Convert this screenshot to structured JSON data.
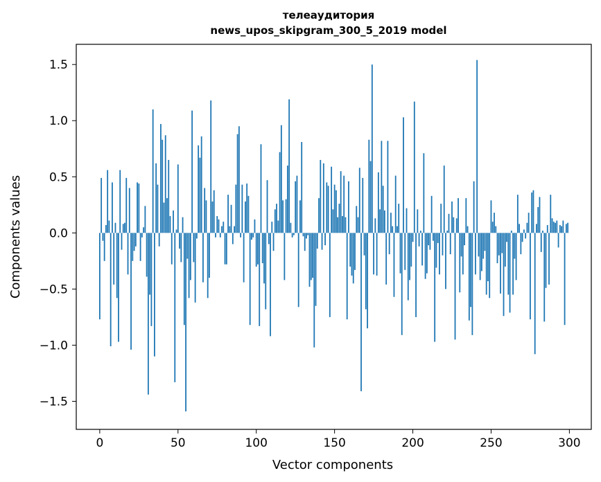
{
  "chart_data": {
    "type": "bar",
    "title_line1": "телеаудитория",
    "title_line2": "news_upos_skipgram_300_5_2019 model",
    "xlabel": "Vector components",
    "ylabel": "Components values",
    "xlim": [
      -15,
      314
    ],
    "ylim": [
      -1.75,
      1.68
    ],
    "xticks": [
      0,
      50,
      100,
      150,
      200,
      250,
      300
    ],
    "yticks": [
      -1.5,
      -1.0,
      -0.5,
      0.0,
      0.5,
      1.0,
      1.5
    ],
    "ytick_labels": [
      "−1.5",
      "−1.0",
      "−0.5",
      "0.0",
      "0.5",
      "1.0",
      "1.5"
    ],
    "bar_color": "#1f77b4",
    "grid": false,
    "values": [
      -0.77,
      0.49,
      -0.07,
      -0.25,
      0.07,
      0.56,
      0.11,
      -1.01,
      0.45,
      -0.46,
      0.09,
      -0.58,
      -0.97,
      0.56,
      -0.15,
      0.08,
      0.09,
      0.49,
      -0.37,
      0.4,
      -1.04,
      -0.25,
      -0.16,
      -0.12,
      0.45,
      0.44,
      -0.25,
      -0.04,
      0.05,
      0.24,
      -0.39,
      -1.44,
      -0.55,
      -0.83,
      1.1,
      -1.1,
      0.62,
      0.43,
      -0.12,
      0.97,
      0.83,
      0.27,
      0.87,
      0.31,
      0.65,
      0.15,
      -0.28,
      0.2,
      -1.33,
      0.03,
      0.61,
      -0.14,
      -0.26,
      0.14,
      -0.82,
      -1.59,
      -0.23,
      -0.58,
      -0.42,
      1.09,
      -0.26,
      -0.62,
      -0.05,
      0.78,
      0.67,
      0.86,
      -0.44,
      0.4,
      0.29,
      -0.58,
      -0.4,
      1.18,
      0.28,
      0.38,
      -0.04,
      0.15,
      0.12,
      -0.04,
      0.06,
      0.1,
      -0.28,
      -0.28,
      0.34,
      0.06,
      0.25,
      -0.1,
      0.06,
      0.43,
      0.88,
      0.95,
      -0.04,
      0.43,
      -0.44,
      0.28,
      0.44,
      0.33,
      -0.82,
      -0.06,
      -0.04,
      0.12,
      -0.3,
      -0.28,
      -0.83,
      0.79,
      -0.27,
      -0.45,
      -0.68,
      0.47,
      -0.1,
      -0.92,
      0.1,
      -0.16,
      0.21,
      0.26,
      0.11,
      0.72,
      0.96,
      0.29,
      -0.42,
      0.3,
      0.6,
      1.19,
      0.09,
      -0.04,
      -0.02,
      0.46,
      0.51,
      -0.66,
      0.29,
      0.81,
      -0.03,
      -0.16,
      -0.05,
      -0.02,
      -0.48,
      -0.42,
      -0.4,
      -1.02,
      -0.65,
      -0.14,
      0.31,
      0.65,
      -0.15,
      0.62,
      -0.11,
      0.45,
      0.42,
      -0.75,
      0.59,
      0.21,
      0.43,
      0.38,
      0.14,
      0.26,
      0.55,
      0.15,
      0.51,
      0.14,
      -0.77,
      0.46,
      -0.3,
      -0.38,
      -0.45,
      -0.33,
      0.24,
      0.14,
      0.58,
      -1.41,
      0.49,
      -0.2,
      -0.68,
      -0.85,
      0.83,
      0.64,
      1.5,
      -0.37,
      0.13,
      -0.38,
      0.54,
      0.21,
      0.82,
      0.42,
      0.2,
      -0.46,
      0.82,
      -0.19,
      0.18,
      0.06,
      -0.57,
      0.51,
      0.06,
      0.26,
      -0.36,
      -0.91,
      1.03,
      -0.33,
      0.22,
      -0.6,
      -0.42,
      -0.3,
      -0.08,
      1.17,
      -0.75,
      0.21,
      -0.12,
      0.02,
      -0.29,
      0.71,
      -0.41,
      -0.36,
      -0.11,
      -0.15,
      0.33,
      -0.07,
      -0.97,
      -0.31,
      -0.09,
      -0.37,
      0.26,
      -0.2,
      0.6,
      -0.5,
      0.02,
      0.17,
      -0.19,
      0.28,
      0.14,
      -0.95,
      0.13,
      0.31,
      -0.53,
      -0.21,
      -0.37,
      -0.11,
      0.31,
      0.06,
      -0.78,
      -0.66,
      -0.91,
      0.46,
      -0.37,
      1.54,
      -0.21,
      -0.42,
      -0.34,
      -0.23,
      -0.16,
      -0.55,
      -0.43,
      -0.58,
      0.29,
      0.1,
      0.18,
      0.06,
      -0.27,
      -0.2,
      -0.54,
      -0.18,
      -0.74,
      -0.3,
      -0.08,
      -0.55,
      -0.71,
      0.02,
      -0.55,
      -0.23,
      -0.42,
      0.34,
      0.08,
      -0.19,
      -0.08,
      0.03,
      -0.05,
      0.09,
      0.18,
      -0.77,
      0.36,
      0.38,
      -1.08,
      0.08,
      0.23,
      0.32,
      -0.17,
      0.02,
      -0.79,
      -0.49,
      0.07,
      -0.46,
      0.34,
      0.13,
      0.1,
      0.09,
      0.11,
      -0.13,
      0.07,
      0.06,
      0.11,
      -0.82,
      0.08,
      0.09
    ]
  }
}
